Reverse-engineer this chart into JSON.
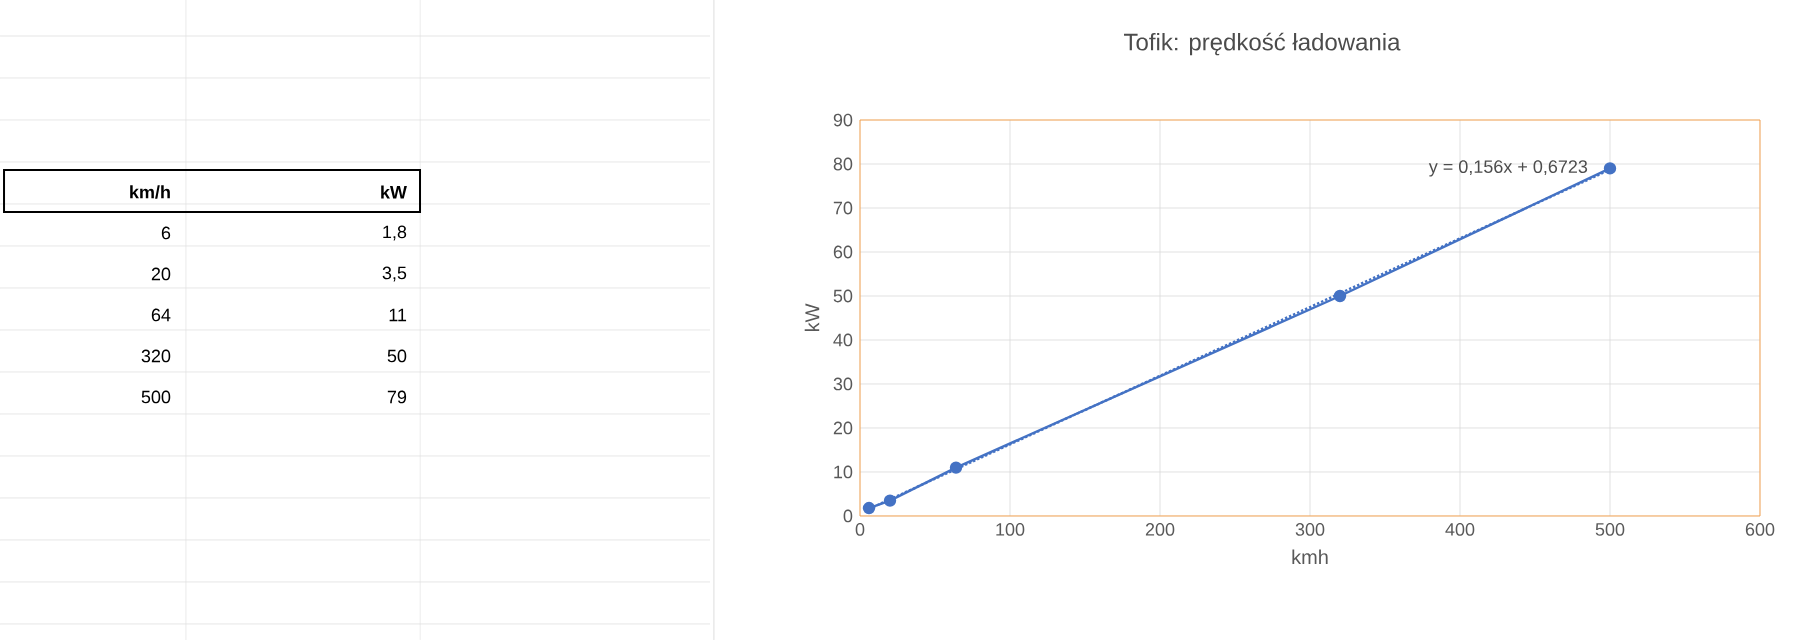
{
  "chart_data": {
    "type": "line",
    "title": "Tofik: prędkość ładowania",
    "xlabel": "kmh",
    "ylabel": "kW",
    "x": [
      6,
      20,
      64,
      320,
      500
    ],
    "series": [
      {
        "color": "#4472c4",
        "values": [
          1.8,
          3.5,
          11,
          50,
          79
        ],
        "marker": "circle",
        "line_style": "solid"
      },
      {
        "type": "line",
        "color": "#4472c4",
        "x": [
          6,
          500
        ],
        "values": [
          1.6,
          78.7
        ],
        "marker": "none",
        "line_style": "dotted"
      }
    ],
    "annotations": [
      "y = 0,156x + 0,6723",
      "km/h",
      "kW",
      "6",
      "1,8",
      "20",
      "3,5",
      "64",
      "11",
      "320",
      "50",
      "500",
      "79"
    ],
    "xlim": [
      0,
      600
    ],
    "xticks": [
      0,
      100,
      200,
      300,
      400,
      500,
      600
    ],
    "ylim": [
      0,
      90
    ],
    "yticks": [
      0,
      10,
      20,
      30,
      40,
      50,
      60,
      70,
      80,
      90
    ],
    "grid": true
  }
}
